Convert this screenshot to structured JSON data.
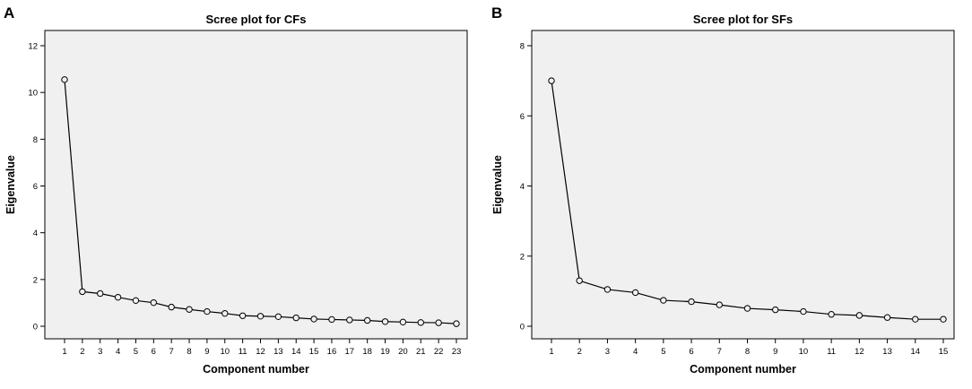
{
  "chart_data": [
    {
      "panel": "A",
      "type": "line",
      "title": "Scree plot for CFs",
      "xlabel": "Component number",
      "ylabel": "Eigenvalue",
      "x": [
        1,
        2,
        3,
        4,
        5,
        6,
        7,
        8,
        9,
        10,
        11,
        12,
        13,
        14,
        15,
        16,
        17,
        18,
        19,
        20,
        21,
        22,
        23
      ],
      "values": [
        10.55,
        1.48,
        1.4,
        1.24,
        1.1,
        1.01,
        0.82,
        0.72,
        0.63,
        0.55,
        0.45,
        0.43,
        0.41,
        0.36,
        0.31,
        0.29,
        0.27,
        0.25,
        0.2,
        0.18,
        0.16,
        0.15,
        0.11
      ],
      "yticks": [
        0,
        2,
        4,
        6,
        8,
        10,
        12
      ],
      "ylim": [
        0,
        12
      ],
      "grid": false,
      "marker": "circle",
      "colors": {
        "plot_bg": "#f0f0f0",
        "line": "#000000",
        "marker_fill": "#f0f0f0"
      }
    },
    {
      "panel": "B",
      "type": "line",
      "title": "Scree plot for SFs",
      "xlabel": "Component number",
      "ylabel": "Eigenvalue",
      "x": [
        1,
        2,
        3,
        4,
        5,
        6,
        7,
        8,
        9,
        10,
        11,
        12,
        13,
        14,
        15
      ],
      "values": [
        7.0,
        1.3,
        1.05,
        0.96,
        0.74,
        0.7,
        0.61,
        0.51,
        0.47,
        0.42,
        0.34,
        0.31,
        0.25,
        0.2,
        0.2
      ],
      "yticks": [
        0,
        2,
        4,
        6,
        8
      ],
      "ylim": [
        0,
        8
      ],
      "grid": false,
      "marker": "circle",
      "colors": {
        "plot_bg": "#f0f0f0",
        "line": "#000000",
        "marker_fill": "#f0f0f0"
      }
    }
  ]
}
